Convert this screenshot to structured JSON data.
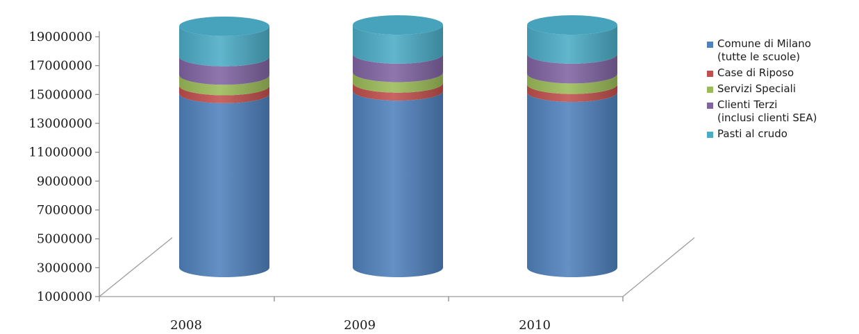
{
  "chart_data": {
    "type": "bar",
    "style": "3d-stacked-cylinder",
    "categories": [
      "2008",
      "2009",
      "2010"
    ],
    "ylim": [
      1000000,
      19000000
    ],
    "yticks": [
      1000000,
      3000000,
      5000000,
      7000000,
      9000000,
      11000000,
      13000000,
      15000000,
      17000000,
      19000000
    ],
    "ytick_labels": [
      "1000000",
      "3000000",
      "5000000",
      "7000000",
      "9000000",
      "11000000",
      "13000000",
      "15000000",
      "17000000",
      "19000000"
    ],
    "legend_position": "right",
    "grid": false,
    "series": [
      {
        "name": "Comune di Milano\n(tutte le scuole)",
        "color": "#4f81bd",
        "values": [
          13200000,
          13400000,
          13300000
        ]
      },
      {
        "name": "Case di Riposo",
        "color": "#c0504d",
        "values": [
          600000,
          600000,
          600000
        ]
      },
      {
        "name": "Servizi Speciali",
        "color": "#9bbb59",
        "values": [
          800000,
          800000,
          800000
        ]
      },
      {
        "name": "Clienti Terzi\n(inclusi clienti SEA)",
        "color": "#8064a2",
        "values": [
          1400000,
          1400000,
          1500000
        ]
      },
      {
        "name": "Pasti al crudo",
        "color": "#4bacc6",
        "values": [
          2300000,
          2200000,
          2200000
        ]
      }
    ]
  }
}
